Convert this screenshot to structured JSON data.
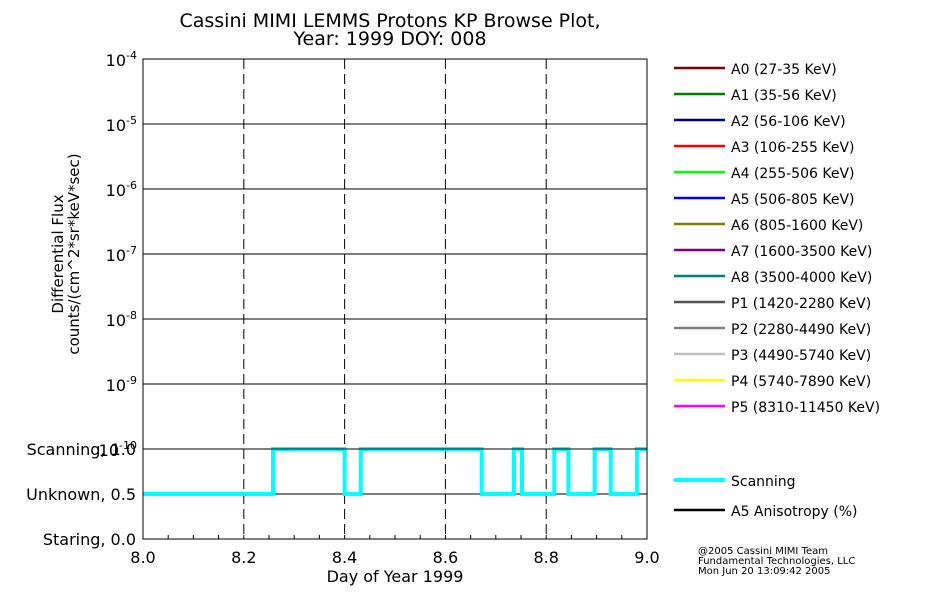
{
  "page": {
    "title_line1": "Cassini MIMI LEMMS Protons KP Browse Plot,",
    "title_line2": "Year: 1999 DOY: 008",
    "copyright_line1": "@2005 Cassini MIMI Team",
    "copyright_line2": "Fundamental Technologies, LLC",
    "copyright_line3": "Mon Jun 20 13:09:42 2005"
  },
  "chart_data": [
    {
      "type": "line",
      "panel": "flux",
      "ylabel_line1": "Differential Flux",
      "ylabel_line2": "counts/(cm^2*sr*keV*sec)",
      "yscale": "log",
      "ylim": [
        1e-10,
        0.0001
      ],
      "yticks": [
        {
          "base": "10",
          "exp": "-10"
        },
        {
          "base": "10",
          "exp": "-9"
        },
        {
          "base": "10",
          "exp": "-8"
        },
        {
          "base": "10",
          "exp": "-7"
        },
        {
          "base": "10",
          "exp": "-6"
        },
        {
          "base": "10",
          "exp": "-5"
        },
        {
          "base": "10",
          "exp": "-4"
        }
      ],
      "xlim": [
        8.0,
        9.0
      ],
      "grid": true,
      "legend_position": "right",
      "series": [
        {
          "name": "A0 (27-35 KeV)",
          "color": "#7f0000",
          "values": []
        },
        {
          "name": "A1 (35-56 KeV)",
          "color": "#007f00",
          "values": []
        },
        {
          "name": "A2 (56-106 KeV)",
          "color": "#00007f",
          "values": []
        },
        {
          "name": "A3 (106-255 KeV)",
          "color": "#ff0000",
          "values": []
        },
        {
          "name": "A4 (255-506 KeV)",
          "color": "#00ff00",
          "values": []
        },
        {
          "name": "A5 (506-805 KeV)",
          "color": "#0000ff",
          "values": []
        },
        {
          "name": "A6 (805-1600 KeV)",
          "color": "#7f7f00",
          "values": []
        },
        {
          "name": "A7 (1600-3500 KeV)",
          "color": "#7f007f",
          "values": []
        },
        {
          "name": "A8 (3500-4000 KeV)",
          "color": "#007f7f",
          "values": []
        },
        {
          "name": "P1 (1420-2280 KeV)",
          "color": "#555555",
          "values": []
        },
        {
          "name": "P2 (2280-4490 KeV)",
          "color": "#808080",
          "values": []
        },
        {
          "name": "P3 (4490-5740 KeV)",
          "color": "#bfbfbf",
          "values": []
        },
        {
          "name": "P4 (5740-7890 KeV)",
          "color": "#ffff00",
          "values": []
        },
        {
          "name": "P5 (8310-11450 KeV)",
          "color": "#ff00ff",
          "values": []
        }
      ]
    },
    {
      "type": "line",
      "panel": "status",
      "xlabel": "Day of Year 1999",
      "xticks": [
        "8.0",
        "8.2",
        "8.4",
        "8.6",
        "8.8",
        "9.0"
      ],
      "xtick_values": [
        8.0,
        8.2,
        8.4,
        8.6,
        8.8,
        9.0
      ],
      "xlim": [
        8.0,
        9.0
      ],
      "ylim": [
        0.0,
        1.0
      ],
      "yticks": [
        {
          "label": "Staring, 0.0",
          "value": 0.0
        },
        {
          "label": "Unknown, 0.5",
          "value": 0.5
        },
        {
          "label": "Scanning, 1.0",
          "value": 1.0
        }
      ],
      "grid": true,
      "legend_position": "right",
      "series": [
        {
          "name": "Scanning",
          "color": "#00ffff",
          "x": [
            8.0,
            8.258,
            8.258,
            8.4,
            8.4,
            8.432,
            8.432,
            8.672,
            8.672,
            8.736,
            8.736,
            8.752,
            8.752,
            8.816,
            8.816,
            8.844,
            8.844,
            8.896,
            8.896,
            8.928,
            8.928,
            8.98,
            8.98,
            9.0
          ],
          "values": [
            0.5,
            0.5,
            1.0,
            1.0,
            0.5,
            0.5,
            1.0,
            1.0,
            0.5,
            0.5,
            1.0,
            1.0,
            0.5,
            0.5,
            1.0,
            1.0,
            0.5,
            0.5,
            1.0,
            1.0,
            0.5,
            0.5,
            1.0,
            1.0
          ]
        },
        {
          "name": "A5 Anisotropy (%)",
          "color": "#000000",
          "values": []
        }
      ]
    }
  ]
}
